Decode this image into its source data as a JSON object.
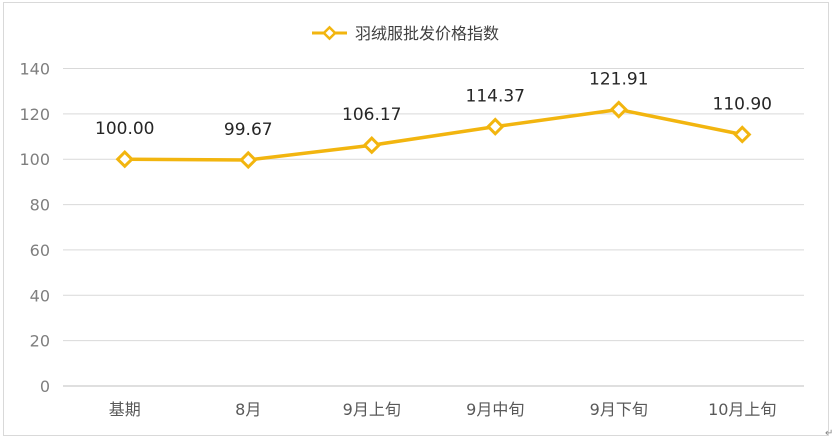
{
  "chart_data": {
    "type": "line",
    "categories": [
      "基期",
      "8月",
      "9月上旬",
      "9月中旬",
      "9月下旬",
      "10月上旬"
    ],
    "series": [
      {
        "name": "羽绒服批发价格指数",
        "values": [
          100.0,
          99.67,
          106.17,
          114.37,
          121.91,
          110.9
        ],
        "labels": [
          "100.00",
          "99.67",
          "106.17",
          "114.37",
          "121.91",
          "110.90"
        ],
        "color": "#F2B50F"
      }
    ],
    "ylim": [
      0,
      140
    ],
    "yticks": [
      0,
      20,
      40,
      60,
      80,
      100,
      120,
      140
    ],
    "grid": true,
    "legend_position": "top-center",
    "marker": "diamond"
  }
}
